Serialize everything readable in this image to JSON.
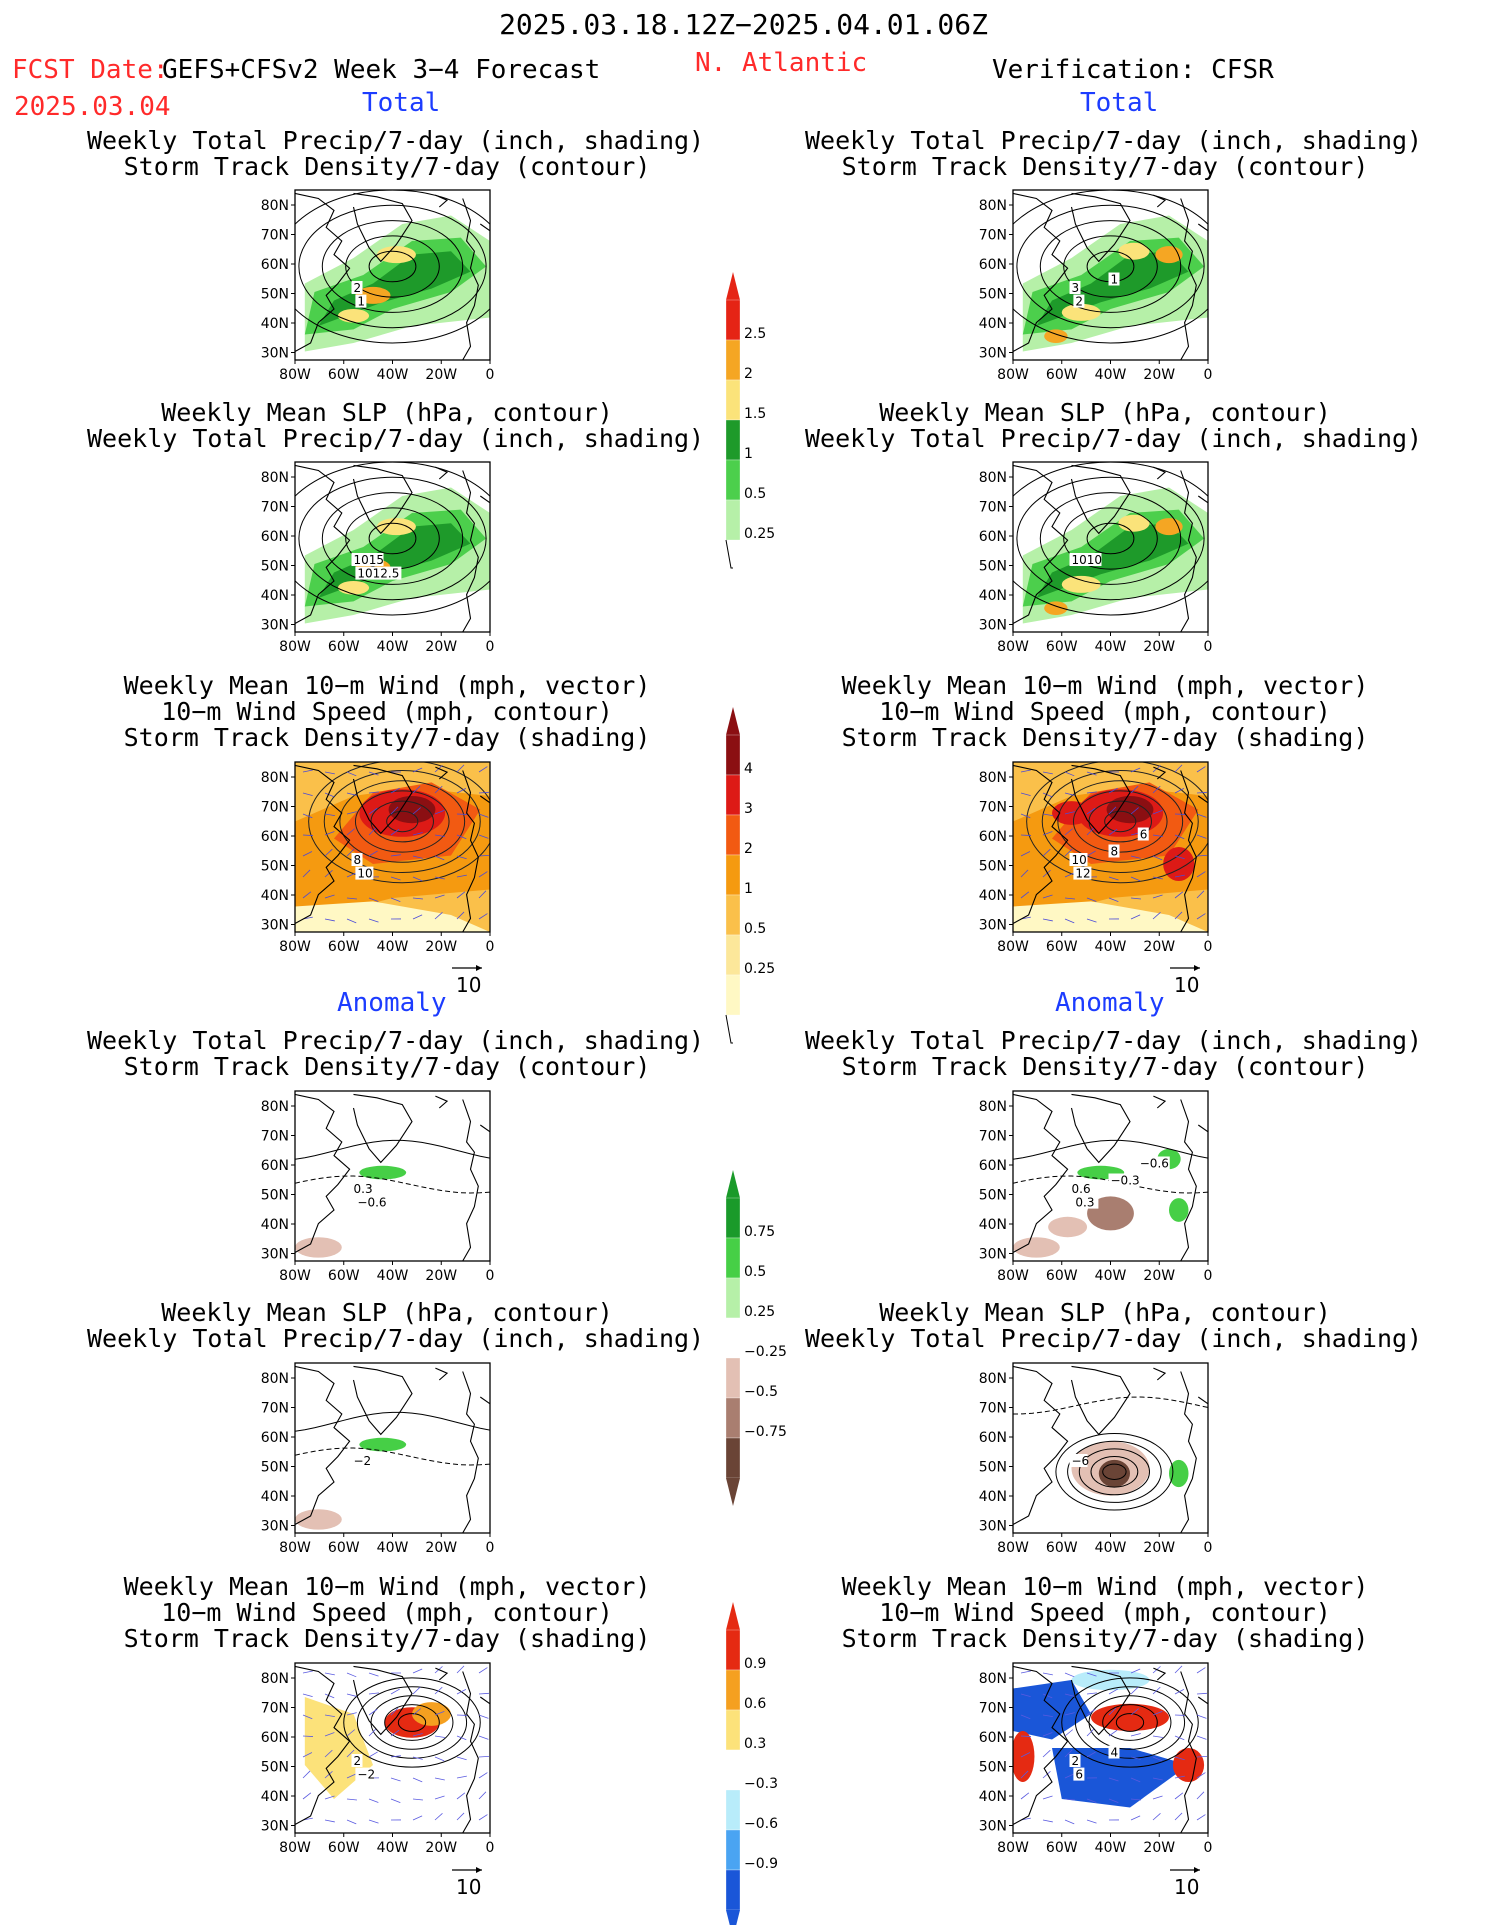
{
  "header": {
    "date_range": "2025.03.18.12Z−2025.04.01.06Z",
    "fcst_label": "FCST Date:",
    "model": "GEFS+CFSv2 Week 3−4 Forecast",
    "fcst_date": "2025.03.04",
    "region": "N. Atlantic",
    "verification": "Verification: CFSR"
  },
  "sections": {
    "total": "Total",
    "anomaly": "Anomaly"
  },
  "titles": {
    "precip_storm": [
      "Weekly Total Precip/7-day (inch, shading)",
      "Storm Track Density/7-day (contour)"
    ],
    "slp_precip": [
      "Weekly Mean SLP (hPa, contour)",
      "Weekly Total Precip/7-day (inch, shading)"
    ],
    "wind": [
      "Weekly Mean 10−m Wind (mph, vector)",
      "10−m Wind Speed (mph, contour)",
      "Storm Track Density/7-day (shading)"
    ]
  },
  "axes": {
    "lat_ticks": [
      "80N",
      "70N",
      "60N",
      "50N",
      "40N",
      "30N"
    ],
    "lon_ticks": [
      "80W",
      "60W",
      "40W",
      "20W",
      "0"
    ]
  },
  "colorbars": {
    "precip_total": {
      "labels": [
        "2.5",
        "2",
        "1.5",
        "1",
        "0.5",
        "0.25"
      ],
      "colors": [
        "#e52415",
        "#f5a623",
        "#fbe37a",
        "#1e9a2a",
        "#4ccf4c",
        "#b6f0a8"
      ]
    },
    "storm_total": {
      "labels": [
        "4",
        "3",
        "2",
        "1",
        "0.5",
        "0.25"
      ],
      "colors": [
        "#8b0f12",
        "#dd1a16",
        "#f25a12",
        "#f59a10",
        "#fac04a",
        "#fce79a",
        "#fff8c4"
      ]
    },
    "precip_anom": {
      "labels": [
        "0.75",
        "0.5",
        "0.25",
        "−0.25",
        "−0.5",
        "−0.75"
      ],
      "colors": [
        "#1a9a2a",
        "#46cf46",
        "#b6f0a8",
        "#ffffff",
        "#e3c0b4",
        "#a97e70",
        "#6a4436"
      ]
    },
    "storm_anom": {
      "labels": [
        "0.9",
        "0.6",
        "0.3",
        "−0.3",
        "−0.6",
        "−0.9"
      ],
      "colors": [
        "#e52a12",
        "#f5a020",
        "#fce27a",
        "#ffffff",
        "#b8ecfa",
        "#4aa4f2",
        "#1a56d8"
      ]
    }
  },
  "panels": {
    "f_total_1": {
      "labels": [
        "2",
        "1"
      ]
    },
    "f_total_2": {
      "labels": [
        "1015",
        "1012.5"
      ]
    },
    "f_total_3": {
      "labels": [
        "8",
        "10"
      ]
    },
    "v_total_1": {
      "labels": [
        "3",
        "2",
        "1"
      ]
    },
    "v_total_2": {
      "labels": [
        "1010"
      ]
    },
    "v_total_3": {
      "labels": [
        "10",
        "12",
        "8",
        "6"
      ]
    },
    "f_anom_1": {
      "labels": [
        "0.3",
        "−0.6"
      ]
    },
    "f_anom_2": {
      "labels": [
        "−2"
      ]
    },
    "f_anom_3": {
      "labels": [
        "2",
        "−2"
      ]
    },
    "v_anom_1": {
      "labels": [
        "0.6",
        "0.3",
        "−0.3",
        "−0.6"
      ]
    },
    "v_anom_2": {
      "labels": [
        "−6"
      ]
    },
    "v_anom_3": {
      "labels": [
        "2",
        "6",
        "4"
      ]
    }
  },
  "vector_ref": "10"
}
